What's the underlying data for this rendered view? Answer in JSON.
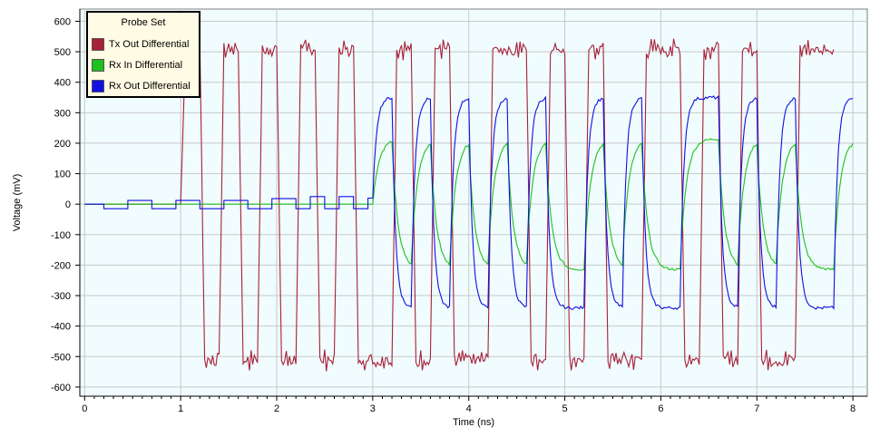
{
  "chart_data": {
    "type": "line",
    "title": "",
    "xlabel": "Time (ns)",
    "ylabel": "Voltage (mV)",
    "xlim": [
      -0.05,
      8.15
    ],
    "ylim": [
      -630,
      640
    ],
    "xticks": [
      0,
      1,
      2,
      3,
      4,
      5,
      6,
      7,
      8
    ],
    "yticks": [
      -600,
      -500,
      -400,
      -300,
      -200,
      -100,
      0,
      100,
      200,
      300,
      400,
      500,
      600
    ],
    "grid": true,
    "background": "#f0fcfd",
    "legend": {
      "title": "Probe Set",
      "placement": "top-left"
    },
    "bits": [
      1,
      0,
      1,
      0,
      1,
      0,
      1,
      0,
      1,
      0,
      0,
      1,
      0,
      1,
      0,
      0,
      1,
      1,
      0,
      1,
      0,
      1,
      0,
      0,
      1,
      1,
      0,
      1,
      0,
      1,
      0,
      0,
      1,
      1
    ],
    "series": [
      {
        "name": "Tx Out Differential",
        "color": "#a8203a",
        "start": 1.0,
        "bit_time": 0.2,
        "high": 510,
        "low": -510,
        "pre_cursor": [
          [
            0,
            0
          ],
          [
            0.7,
            0
          ],
          [
            1.0,
            0
          ]
        ]
      },
      {
        "name": "Rx In Differential",
        "color": "#1fc01f",
        "start": 3.0,
        "bit_time": 0.2,
        "high": 215,
        "low": -215,
        "pre_cursor": [
          [
            0,
            0
          ],
          [
            3.0,
            0
          ]
        ]
      },
      {
        "name": "Rx Out Differential",
        "color": "#1010e0",
        "start": 3.0,
        "bit_time": 0.2,
        "high": 350,
        "low": -340,
        "pre_cursor": [
          [
            0,
            0
          ],
          [
            0.2,
            0
          ],
          [
            0.2,
            -15
          ],
          [
            0.45,
            -15
          ],
          [
            0.45,
            12
          ],
          [
            0.7,
            12
          ],
          [
            0.7,
            -15
          ],
          [
            0.95,
            -15
          ],
          [
            0.95,
            12
          ],
          [
            1.2,
            12
          ],
          [
            1.2,
            -15
          ],
          [
            1.45,
            -15
          ],
          [
            1.45,
            12
          ],
          [
            1.7,
            12
          ],
          [
            1.7,
            -15
          ],
          [
            1.95,
            -15
          ],
          [
            1.95,
            18
          ],
          [
            2.2,
            18
          ],
          [
            2.2,
            -15
          ],
          [
            2.35,
            -15
          ],
          [
            2.35,
            25
          ],
          [
            2.5,
            25
          ],
          [
            2.5,
            -15
          ],
          [
            2.65,
            -15
          ],
          [
            2.65,
            25
          ],
          [
            2.8,
            25
          ],
          [
            2.8,
            -15
          ],
          [
            2.95,
            -15
          ],
          [
            2.95,
            20
          ],
          [
            3.0,
            20
          ]
        ]
      }
    ]
  }
}
